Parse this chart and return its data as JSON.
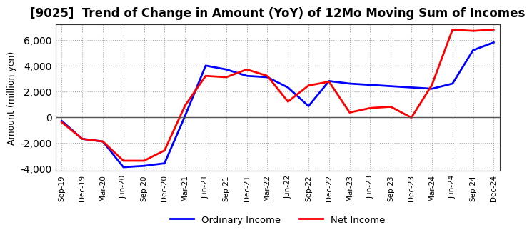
{
  "title": "[9025]  Trend of Change in Amount (YoY) of 12Mo Moving Sum of Incomes",
  "ylabel": "Amount (million yen)",
  "ylim": [
    -4200,
    7200
  ],
  "yticks": [
    -4000,
    -2000,
    0,
    2000,
    4000,
    6000
  ],
  "x_labels": [
    "Sep-19",
    "Dec-19",
    "Mar-20",
    "Jun-20",
    "Sep-20",
    "Dec-20",
    "Mar-21",
    "Jun-21",
    "Sep-21",
    "Dec-21",
    "Mar-22",
    "Jun-22",
    "Sep-22",
    "Dec-22",
    "Mar-23",
    "Jun-23",
    "Sep-23",
    "Dec-23",
    "Mar-24",
    "Jun-24",
    "Sep-24",
    "Dec-24"
  ],
  "ordinary_income": [
    -300,
    -1700,
    -1900,
    -3900,
    -3800,
    -3600,
    100,
    4000,
    3700,
    3200,
    3100,
    2300,
    850,
    2800,
    2600,
    2500,
    2400,
    2300,
    2200,
    2600,
    5200,
    5800
  ],
  "net_income": [
    -400,
    -1700,
    -1900,
    -3400,
    -3400,
    -2600,
    900,
    3200,
    3100,
    3700,
    3200,
    1200,
    2450,
    2750,
    350,
    700,
    800,
    -50,
    2500,
    6800,
    6700,
    6800
  ],
  "ordinary_color": "#0000ff",
  "net_color": "#ff0000",
  "grid_color": "#aaaaaa",
  "zero_line_color": "#555555",
  "background_color": "#ffffff",
  "title_fontsize": 12,
  "legend_labels": [
    "Ordinary Income",
    "Net Income"
  ]
}
